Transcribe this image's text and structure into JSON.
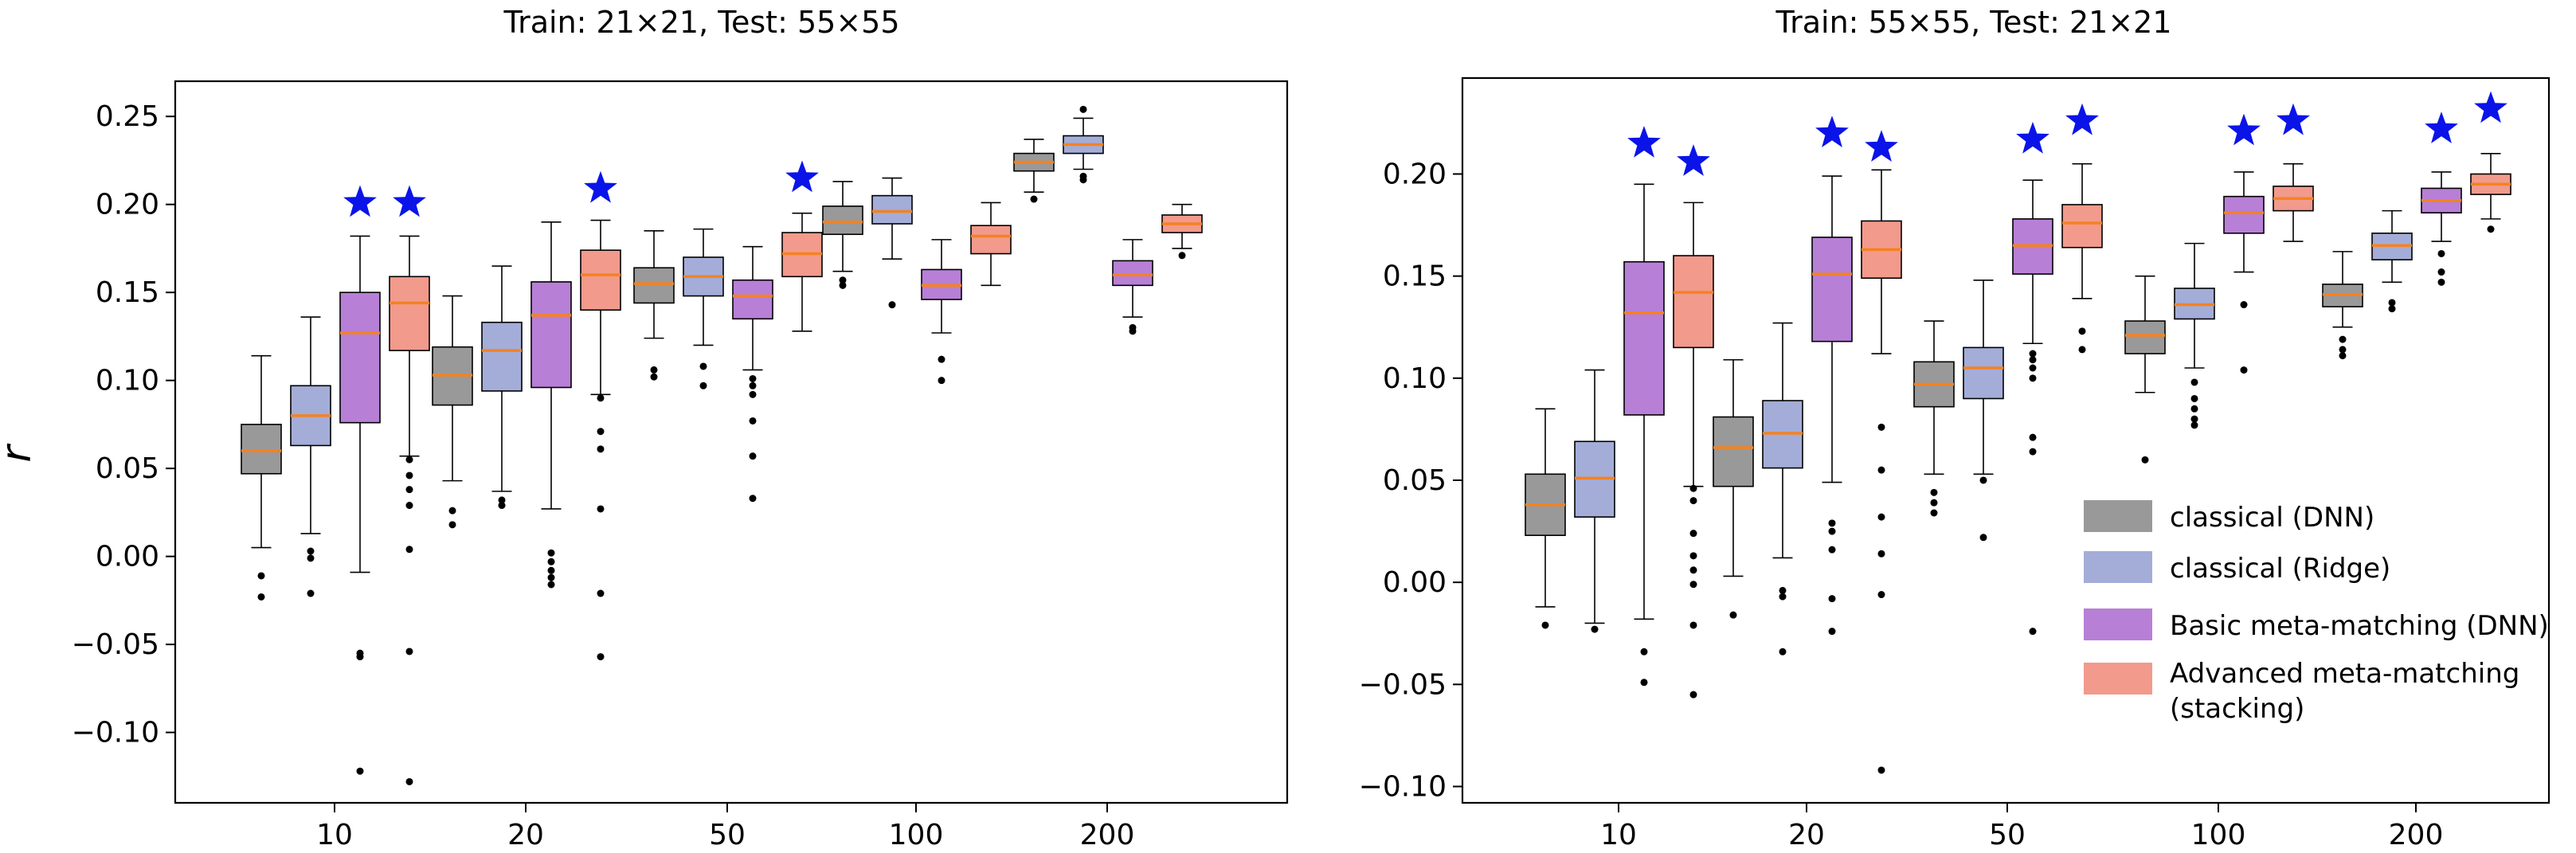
{
  "colors": {
    "classical_dnn": "#999999",
    "classical_ridge": "#a3add8",
    "basic_mm": "#b87fd6",
    "advanced_mm": "#f29a8c",
    "median": "#f58220",
    "star": "#0a14e8"
  },
  "legend": [
    {
      "label": "classical (DNN)",
      "color_key": "classical_dnn"
    },
    {
      "label": "classical (Ridge)",
      "color_key": "classical_ridge"
    },
    {
      "label": "Basic meta-matching (DNN)",
      "color_key": "basic_mm"
    },
    {
      "label_lines": [
        "Advanced meta-matching",
        "(stacking)"
      ],
      "color_key": "advanced_mm"
    }
  ],
  "chart_data": [
    {
      "type": "box",
      "title": "Train: 21×21, Test: 55×55",
      "ylabel": "r",
      "xlabel": "",
      "ylim": [
        -0.14,
        0.27
      ],
      "yticks": [
        -0.1,
        -0.05,
        0.0,
        0.05,
        0.1,
        0.15,
        0.2,
        0.25
      ],
      "ytick_labels": [
        "−0.10",
        "−0.05",
        "0.00",
        "0.05",
        "0.10",
        "0.15",
        "0.20",
        "0.25"
      ],
      "categories": [
        "10",
        "20",
        "50",
        "100",
        "200"
      ],
      "series": [
        {
          "name": "classical (DNN)",
          "color_key": "classical_dnn",
          "boxes": [
            {
              "q1": 0.047,
              "median": 0.06,
              "q3": 0.075,
              "whislo": 0.005,
              "whishi": 0.114,
              "fliers": [
                -0.011,
                -0.023
              ]
            },
            {
              "q1": 0.086,
              "median": 0.103,
              "q3": 0.119,
              "whislo": 0.043,
              "whishi": 0.148,
              "fliers": [
                0.026,
                0.018
              ]
            },
            {
              "q1": 0.144,
              "median": 0.155,
              "q3": 0.164,
              "whislo": 0.124,
              "whishi": 0.185,
              "fliers": [
                0.106,
                0.102
              ]
            },
            {
              "q1": 0.183,
              "median": 0.19,
              "q3": 0.199,
              "whislo": 0.162,
              "whishi": 0.213,
              "fliers": [
                0.157,
                0.154
              ]
            },
            {
              "q1": 0.219,
              "median": 0.224,
              "q3": 0.229,
              "whislo": 0.207,
              "whishi": 0.237,
              "fliers": [
                0.203
              ]
            }
          ]
        },
        {
          "name": "classical (Ridge)",
          "color_key": "classical_ridge",
          "boxes": [
            {
              "q1": 0.063,
              "median": 0.08,
              "q3": 0.097,
              "whislo": 0.013,
              "whishi": 0.136,
              "fliers": [
                0.003,
                -0.001,
                -0.021
              ]
            },
            {
              "q1": 0.094,
              "median": 0.117,
              "q3": 0.133,
              "whislo": 0.037,
              "whishi": 0.165,
              "fliers": [
                0.032,
                0.029
              ]
            },
            {
              "q1": 0.148,
              "median": 0.159,
              "q3": 0.17,
              "whislo": 0.12,
              "whishi": 0.186,
              "fliers": [
                0.108,
                0.097
              ]
            },
            {
              "q1": 0.189,
              "median": 0.196,
              "q3": 0.205,
              "whislo": 0.169,
              "whishi": 0.215,
              "fliers": [
                0.143
              ]
            },
            {
              "q1": 0.229,
              "median": 0.234,
              "q3": 0.239,
              "whislo": 0.22,
              "whishi": 0.249,
              "fliers": [
                0.254,
                0.216,
                0.214
              ]
            }
          ]
        },
        {
          "name": "Basic meta-matching (DNN)",
          "color_key": "basic_mm",
          "boxes": [
            {
              "q1": 0.076,
              "median": 0.127,
              "q3": 0.15,
              "whislo": -0.009,
              "whishi": 0.182,
              "fliers": [
                -0.055,
                -0.057,
                -0.122
              ]
            },
            {
              "q1": 0.096,
              "median": 0.137,
              "q3": 0.156,
              "whislo": 0.027,
              "whishi": 0.19,
              "fliers": [
                0.002,
                -0.003,
                -0.008,
                -0.012,
                -0.016
              ]
            },
            {
              "q1": 0.135,
              "median": 0.148,
              "q3": 0.157,
              "whislo": 0.106,
              "whishi": 0.176,
              "fliers": [
                0.101,
                0.097,
                0.092,
                0.077,
                0.057,
                0.033
              ]
            },
            {
              "q1": 0.146,
              "median": 0.154,
              "q3": 0.163,
              "whislo": 0.127,
              "whishi": 0.18,
              "fliers": [
                0.112,
                0.1
              ]
            },
            {
              "q1": 0.154,
              "median": 0.16,
              "q3": 0.168,
              "whislo": 0.136,
              "whishi": 0.18,
              "fliers": [
                0.13,
                0.128
              ]
            }
          ]
        },
        {
          "name": "Advanced meta-matching (stacking)",
          "color_key": "advanced_mm",
          "boxes": [
            {
              "q1": 0.117,
              "median": 0.144,
              "q3": 0.159,
              "whislo": 0.057,
              "whishi": 0.182,
              "fliers": [
                0.055,
                0.046,
                0.038,
                0.029,
                0.004,
                -0.054,
                -0.128
              ]
            },
            {
              "q1": 0.14,
              "median": 0.16,
              "q3": 0.174,
              "whislo": 0.092,
              "whishi": 0.191,
              "fliers": [
                0.09,
                0.071,
                0.061,
                0.027,
                -0.021,
                -0.057
              ]
            },
            {
              "q1": 0.159,
              "median": 0.172,
              "q3": 0.184,
              "whislo": 0.128,
              "whishi": 0.195,
              "fliers": []
            },
            {
              "q1": 0.172,
              "median": 0.182,
              "q3": 0.188,
              "whislo": 0.154,
              "whishi": 0.201,
              "fliers": []
            },
            {
              "q1": 0.184,
              "median": 0.189,
              "q3": 0.194,
              "whislo": 0.175,
              "whishi": 0.2,
              "fliers": [
                0.171
              ]
            }
          ]
        }
      ],
      "stars": [
        {
          "category": "10",
          "series_index": 2,
          "y": 0.201
        },
        {
          "category": "10",
          "series_index": 3,
          "y": 0.201
        },
        {
          "category": "20",
          "series_index": 3,
          "y": 0.209
        },
        {
          "category": "50",
          "series_index": 3,
          "y": 0.215
        }
      ]
    },
    {
      "type": "box",
      "title": "Train: 55×55, Test: 21×21",
      "ylabel": "",
      "xlabel": "",
      "ylim": [
        -0.108,
        0.247
      ],
      "yticks": [
        -0.1,
        -0.05,
        0.0,
        0.05,
        0.1,
        0.15,
        0.2
      ],
      "ytick_labels": [
        "−0.10",
        "−0.05",
        "0.00",
        "0.05",
        "0.10",
        "0.15",
        "0.20"
      ],
      "categories": [
        "10",
        "20",
        "50",
        "100",
        "200"
      ],
      "legend_position": "lower-right",
      "series": [
        {
          "name": "classical (DNN)",
          "color_key": "classical_dnn",
          "boxes": [
            {
              "q1": 0.023,
              "median": 0.038,
              "q3": 0.053,
              "whislo": -0.012,
              "whishi": 0.085,
              "fliers": [
                -0.021
              ]
            },
            {
              "q1": 0.047,
              "median": 0.066,
              "q3": 0.081,
              "whislo": 0.003,
              "whishi": 0.109,
              "fliers": [
                -0.016
              ]
            },
            {
              "q1": 0.086,
              "median": 0.097,
              "q3": 0.108,
              "whislo": 0.053,
              "whishi": 0.128,
              "fliers": [
                0.044,
                0.039,
                0.034
              ]
            },
            {
              "q1": 0.112,
              "median": 0.121,
              "q3": 0.128,
              "whislo": 0.093,
              "whishi": 0.15,
              "fliers": [
                0.06
              ]
            },
            {
              "q1": 0.135,
              "median": 0.141,
              "q3": 0.146,
              "whislo": 0.125,
              "whishi": 0.162,
              "fliers": [
                0.119,
                0.114,
                0.111
              ]
            }
          ]
        },
        {
          "name": "classical (Ridge)",
          "color_key": "classical_ridge",
          "boxes": [
            {
              "q1": 0.032,
              "median": 0.051,
              "q3": 0.069,
              "whislo": -0.02,
              "whishi": 0.104,
              "fliers": [
                -0.023
              ]
            },
            {
              "q1": 0.056,
              "median": 0.073,
              "q3": 0.089,
              "whislo": 0.012,
              "whishi": 0.127,
              "fliers": [
                -0.004,
                -0.007,
                -0.034
              ]
            },
            {
              "q1": 0.09,
              "median": 0.105,
              "q3": 0.115,
              "whislo": 0.053,
              "whishi": 0.148,
              "fliers": [
                0.05,
                0.022
              ]
            },
            {
              "q1": 0.129,
              "median": 0.136,
              "q3": 0.144,
              "whislo": 0.105,
              "whishi": 0.166,
              "fliers": [
                0.098,
                0.09,
                0.085,
                0.08,
                0.077
              ]
            },
            {
              "q1": 0.158,
              "median": 0.165,
              "q3": 0.171,
              "whislo": 0.147,
              "whishi": 0.182,
              "fliers": [
                0.137,
                0.134
              ]
            }
          ]
        },
        {
          "name": "Basic meta-matching (DNN)",
          "color_key": "basic_mm",
          "boxes": [
            {
              "q1": 0.082,
              "median": 0.132,
              "q3": 0.157,
              "whislo": -0.018,
              "whishi": 0.195,
              "fliers": [
                -0.034,
                -0.049
              ]
            },
            {
              "q1": 0.118,
              "median": 0.151,
              "q3": 0.169,
              "whislo": 0.049,
              "whishi": 0.199,
              "fliers": [
                0.029,
                0.025,
                0.016,
                -0.008,
                -0.024
              ]
            },
            {
              "q1": 0.151,
              "median": 0.165,
              "q3": 0.178,
              "whislo": 0.117,
              "whishi": 0.197,
              "fliers": [
                0.112,
                0.109,
                0.105,
                0.1,
                0.071,
                0.064,
                -0.024
              ]
            },
            {
              "q1": 0.171,
              "median": 0.181,
              "q3": 0.189,
              "whislo": 0.152,
              "whishi": 0.201,
              "fliers": [
                0.136,
                0.104
              ]
            },
            {
              "q1": 0.181,
              "median": 0.187,
              "q3": 0.193,
              "whislo": 0.167,
              "whishi": 0.201,
              "fliers": [
                0.161,
                0.152,
                0.147
              ]
            }
          ]
        },
        {
          "name": "Advanced meta-matching (stacking)",
          "color_key": "advanced_mm",
          "boxes": [
            {
              "q1": 0.115,
              "median": 0.142,
              "q3": 0.16,
              "whislo": 0.047,
              "whishi": 0.186,
              "fliers": [
                0.046,
                0.04,
                0.024,
                0.013,
                0.006,
                -0.001,
                -0.021,
                -0.055
              ]
            },
            {
              "q1": 0.149,
              "median": 0.163,
              "q3": 0.177,
              "whislo": 0.112,
              "whishi": 0.202,
              "fliers": [
                0.076,
                0.055,
                0.032,
                0.014,
                -0.006,
                -0.092
              ]
            },
            {
              "q1": 0.164,
              "median": 0.176,
              "q3": 0.185,
              "whislo": 0.139,
              "whishi": 0.205,
              "fliers": [
                0.123,
                0.114
              ]
            },
            {
              "q1": 0.182,
              "median": 0.188,
              "q3": 0.194,
              "whislo": 0.167,
              "whishi": 0.205,
              "fliers": []
            },
            {
              "q1": 0.19,
              "median": 0.195,
              "q3": 0.2,
              "whislo": 0.178,
              "whishi": 0.21,
              "fliers": [
                0.173
              ]
            }
          ]
        }
      ],
      "stars": [
        {
          "category": "10",
          "series_index": 2,
          "y": 0.215
        },
        {
          "category": "10",
          "series_index": 3,
          "y": 0.206
        },
        {
          "category": "20",
          "series_index": 2,
          "y": 0.22
        },
        {
          "category": "20",
          "series_index": 3,
          "y": 0.213
        },
        {
          "category": "50",
          "series_index": 2,
          "y": 0.217
        },
        {
          "category": "50",
          "series_index": 3,
          "y": 0.226
        },
        {
          "category": "100",
          "series_index": 2,
          "y": 0.221
        },
        {
          "category": "100",
          "series_index": 3,
          "y": 0.226
        },
        {
          "category": "200",
          "series_index": 2,
          "y": 0.222
        },
        {
          "category": "200",
          "series_index": 3,
          "y": 0.232
        }
      ]
    }
  ]
}
